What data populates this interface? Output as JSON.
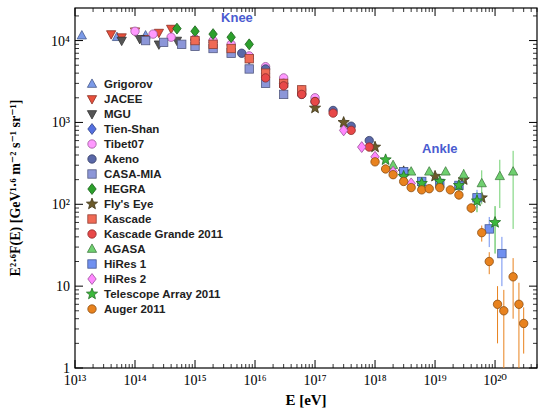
{
  "chart_data": {
    "type": "scatter",
    "log": true,
    "x_label": "E [eV]",
    "y_label": "E²·⁶F(E) [GeV¹·⁶ m⁻² s⁻¹ sr⁻¹]",
    "xlim": [
      10000000000000.0,
      5e+20
    ],
    "ylim": [
      1,
      25000
    ],
    "xticks": [
      {
        "value": 10000000000000.0,
        "label": "10¹³"
      },
      {
        "value": 100000000000000.0,
        "label": "10¹⁴"
      },
      {
        "value": 1000000000000000.0,
        "label": "10¹⁵"
      },
      {
        "value": 1e+16,
        "label": "10¹⁶"
      },
      {
        "value": 1e+17,
        "label": "10¹⁷"
      },
      {
        "value": 1e+18,
        "label": "10¹⁸"
      },
      {
        "value": 1e+19,
        "label": "10¹⁹"
      },
      {
        "value": 1e+20,
        "label": "10²⁰"
      }
    ],
    "yticks": [
      1,
      10,
      {
        "value": 100,
        "label": "10²"
      },
      {
        "value": 1000,
        "label": "10³"
      },
      {
        "value": 10000,
        "label": "10⁴"
      }
    ],
    "legend": "left",
    "annotations": [
      {
        "text": "Knee",
        "x": 5000000000000000.0,
        "y": 17000,
        "color": "#4a5bd0"
      },
      {
        "text": "Ankle",
        "x": 1.2e+19,
        "y": 420,
        "color": "#4a5bd0"
      }
    ],
    "series": [
      {
        "name": "Grigorov",
        "color": "#7b9ae8",
        "marker": "triangle-up",
        "x": [
          13000000000000.0,
          50000000000000.0,
          150000000000000.0
        ],
        "values": [
          11500,
          11000,
          11500
        ]
      },
      {
        "name": "JACEE",
        "color": "#e8503c",
        "marker": "triangle-down",
        "x": [
          40000000000000.0,
          60000000000000.0,
          100000000000000.0,
          150000000000000.0,
          250000000000000.0,
          400000000000000.0
        ],
        "values": [
          12000,
          11000,
          13000,
          10500,
          12500,
          14000
        ]
      },
      {
        "name": "MGU",
        "color": "#555555",
        "marker": "triangle-down",
        "x": [
          60000000000000.0,
          120000000000000.0,
          250000000000000.0,
          500000000000000.0,
          1000000000000000.0
        ],
        "values": [
          10000,
          10500,
          9000,
          10000,
          9500
        ]
      },
      {
        "name": "Tien-Shan",
        "color": "#5470e0",
        "marker": "diamond",
        "x": [
          1000000000000000.0,
          2000000000000000.0,
          4000000000000000.0,
          8000000000000000.0,
          1.5e+16,
          3e+16
        ],
        "values": [
          10000,
          9500,
          8000,
          6000,
          4000,
          3000
        ]
      },
      {
        "name": "Tibet07",
        "color": "#ff99ff",
        "marker": "circle",
        "x": [
          100000000000000.0,
          200000000000000.0,
          400000000000000.0,
          1000000000000000.0,
          2000000000000000.0,
          4000000000000000.0,
          8000000000000000.0,
          1.5e+16,
          3e+16,
          6e+16,
          1e+17
        ],
        "values": [
          13000,
          12000,
          11000,
          10500,
          10000,
          9000,
          6500,
          4800,
          3500,
          2500,
          2000
        ]
      },
      {
        "name": "Akeno",
        "color": "#5a68a8",
        "marker": "circle",
        "x": [
          6000000000000000.0,
          1.5e+16,
          3e+16,
          6e+16,
          1e+17,
          2e+17,
          4e+17,
          8e+17
        ],
        "values": [
          7000,
          4500,
          3000,
          2200,
          1800,
          1400,
          900,
          600
        ]
      },
      {
        "name": "CASA-MIA",
        "color": "#8c96d8",
        "marker": "square",
        "x": [
          150000000000000.0,
          300000000000000.0,
          600000000000000.0,
          1000000000000000.0,
          2000000000000000.0,
          4000000000000000.0,
          8000000000000000.0,
          1.5e+16,
          3e+16
        ],
        "values": [
          10000,
          9500,
          9000,
          8500,
          8000,
          7000,
          4500,
          3000,
          2200
        ]
      },
      {
        "name": "HEGRA",
        "color": "#2ca02c",
        "marker": "diamond",
        "x": [
          500000000000000.0,
          1000000000000000.0,
          2000000000000000.0,
          4000000000000000.0,
          8000000000000000.0
        ],
        "values": [
          14000,
          13000,
          12000,
          11000,
          9000
        ]
      },
      {
        "name": "Fly's Eye",
        "color": "#6b5a2a",
        "marker": "star",
        "x": [
          1e+17,
          3e+17,
          1e+18,
          3e+18,
          1e+19,
          3e+19,
          6e+19
        ],
        "values": [
          1500,
          1000,
          500,
          250,
          220,
          200,
          120
        ]
      },
      {
        "name": "Kascade",
        "color": "#f06a55",
        "marker": "square",
        "x": [
          1000000000000000.0,
          2000000000000000.0,
          4000000000000000.0,
          8000000000000000.0,
          1.5e+16,
          3e+16,
          6e+16
        ],
        "values": [
          10000,
          9000,
          8000,
          6000,
          4000,
          3000,
          2500
        ]
      },
      {
        "name": "Kascade Grande 2011",
        "color": "#e84848",
        "marker": "circle",
        "x": [
          1.5e+16,
          3e+16,
          6e+16,
          1e+17,
          2e+17,
          4e+17,
          8e+17
        ],
        "values": [
          3500,
          2800,
          2200,
          1800,
          1300,
          800,
          500
        ]
      },
      {
        "name": "AGASA",
        "color": "#6fd06f",
        "marker": "triangle-up",
        "x": [
          2e+18,
          4e+18,
          8e+18,
          1.5e+19,
          3e+19,
          6e+19,
          1.2e+20,
          2e+20
        ],
        "values": [
          300,
          250,
          250,
          250,
          230,
          180,
          220,
          250
        ],
        "errors": [
          null,
          null,
          null,
          null,
          40,
          80,
          130,
          200
        ]
      },
      {
        "name": "HiRes 1",
        "color": "#7090f0",
        "marker": "square",
        "x": [
          3e+18,
          6e+18,
          1.2e+19,
          2.5e+19,
          5e+19,
          8e+19,
          1.3e+20
        ],
        "values": [
          250,
          190,
          180,
          170,
          120,
          50,
          25
        ],
        "errors": [
          null,
          null,
          null,
          25,
          30,
          20,
          15
        ]
      },
      {
        "name": "HiRes 2",
        "color": "#ff88ff",
        "marker": "diamond",
        "x": [
          3e+17,
          6e+17,
          1e+18,
          2e+18,
          4e+18
        ],
        "values": [
          800,
          500,
          380,
          250,
          180
        ]
      },
      {
        "name": "Telescope Array 2011",
        "color": "#3cb83c",
        "marker": "star",
        "x": [
          1.5e+18,
          3e+18,
          6e+18,
          1.2e+19,
          2.5e+19,
          5e+19,
          1e+20
        ],
        "values": [
          350,
          220,
          180,
          190,
          170,
          110,
          60
        ],
        "errors": [
          null,
          null,
          null,
          null,
          25,
          30,
          35
        ]
      },
      {
        "name": "Auger 2011",
        "color": "#e8821e",
        "marker": "circle",
        "x": [
          1e+18,
          1.5e+18,
          2e+18,
          3e+18,
          4e+18,
          6e+18,
          8e+18,
          1.2e+19,
          1.8e+19,
          2.5e+19,
          4e+19,
          6e+19,
          8e+19,
          1.1e+20,
          1.4e+20,
          2e+20,
          2.5e+20,
          3e+20
        ],
        "values": [
          330,
          270,
          230,
          190,
          160,
          150,
          155,
          160,
          150,
          130,
          90,
          45,
          20,
          6,
          5,
          13,
          6,
          3.5
        ],
        "errors": [
          null,
          null,
          null,
          null,
          null,
          null,
          null,
          null,
          null,
          15,
          12,
          10,
          6,
          4,
          4,
          9,
          5,
          2
        ]
      }
    ]
  }
}
